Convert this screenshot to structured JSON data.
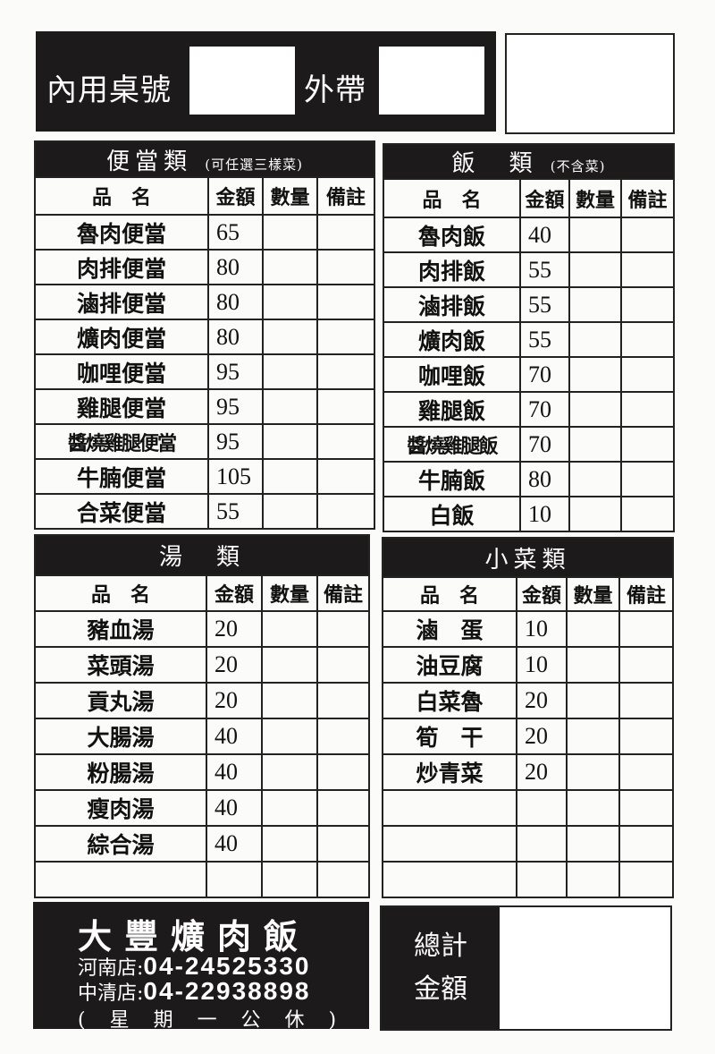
{
  "top": {
    "dine_in_label": "內用桌號",
    "takeout_label": "外帶"
  },
  "columns": {
    "name": "品　名",
    "price": "金額",
    "qty": "數量",
    "note": "備註"
  },
  "bento": {
    "title": "便當類",
    "subtitle": "(可任選三樣菜)",
    "items": [
      {
        "name": "魯肉便當",
        "price": "65"
      },
      {
        "name": "肉排便當",
        "price": "80"
      },
      {
        "name": "滷排便當",
        "price": "80"
      },
      {
        "name": "爌肉便當",
        "price": "80"
      },
      {
        "name": "咖哩便當",
        "price": "95"
      },
      {
        "name": "雞腿便當",
        "price": "95"
      },
      {
        "name": "醬燒雞腿便當",
        "price": "95"
      },
      {
        "name": "牛腩便當",
        "price": "105"
      },
      {
        "name": "合菜便當",
        "price": "55"
      }
    ]
  },
  "rice": {
    "title": "飯　類",
    "subtitle": "(不含菜)",
    "items": [
      {
        "name": "魯肉飯",
        "price": "40"
      },
      {
        "name": "肉排飯",
        "price": "55"
      },
      {
        "name": "滷排飯",
        "price": "55"
      },
      {
        "name": "爌肉飯",
        "price": "55"
      },
      {
        "name": "咖哩飯",
        "price": "70"
      },
      {
        "name": "雞腿飯",
        "price": "70"
      },
      {
        "name": "醬燒雞腿飯",
        "price": "70"
      },
      {
        "name": "牛腩飯",
        "price": "80"
      },
      {
        "name": "白飯",
        "price": "10"
      }
    ]
  },
  "soup": {
    "title": "湯　類",
    "items": [
      {
        "name": "豬血湯",
        "price": "20"
      },
      {
        "name": "菜頭湯",
        "price": "20"
      },
      {
        "name": "貢丸湯",
        "price": "20"
      },
      {
        "name": "大腸湯",
        "price": "40"
      },
      {
        "name": "粉腸湯",
        "price": "40"
      },
      {
        "name": "瘦肉湯",
        "price": "40"
      },
      {
        "name": "綜合湯",
        "price": "40"
      },
      {
        "name": "",
        "price": ""
      }
    ]
  },
  "sides": {
    "title": "小菜類",
    "items": [
      {
        "name": "滷　蛋",
        "price": "10"
      },
      {
        "name": "油豆腐",
        "price": "10"
      },
      {
        "name": "白菜魯",
        "price": "20"
      },
      {
        "name": "筍　干",
        "price": "20"
      },
      {
        "name": "炒青菜",
        "price": "20"
      },
      {
        "name": "",
        "price": ""
      },
      {
        "name": "",
        "price": ""
      },
      {
        "name": "",
        "price": ""
      }
    ]
  },
  "footer": {
    "brand": "大豐爌肉飯",
    "branch1_label": "河南店:",
    "branch1_phone": "04-24525330",
    "branch2_label": "中清店:",
    "branch2_phone": "04-22938898",
    "closed": "( 星 期 一 公 休 )"
  },
  "total": {
    "label1": "總計",
    "label2": "金額"
  }
}
